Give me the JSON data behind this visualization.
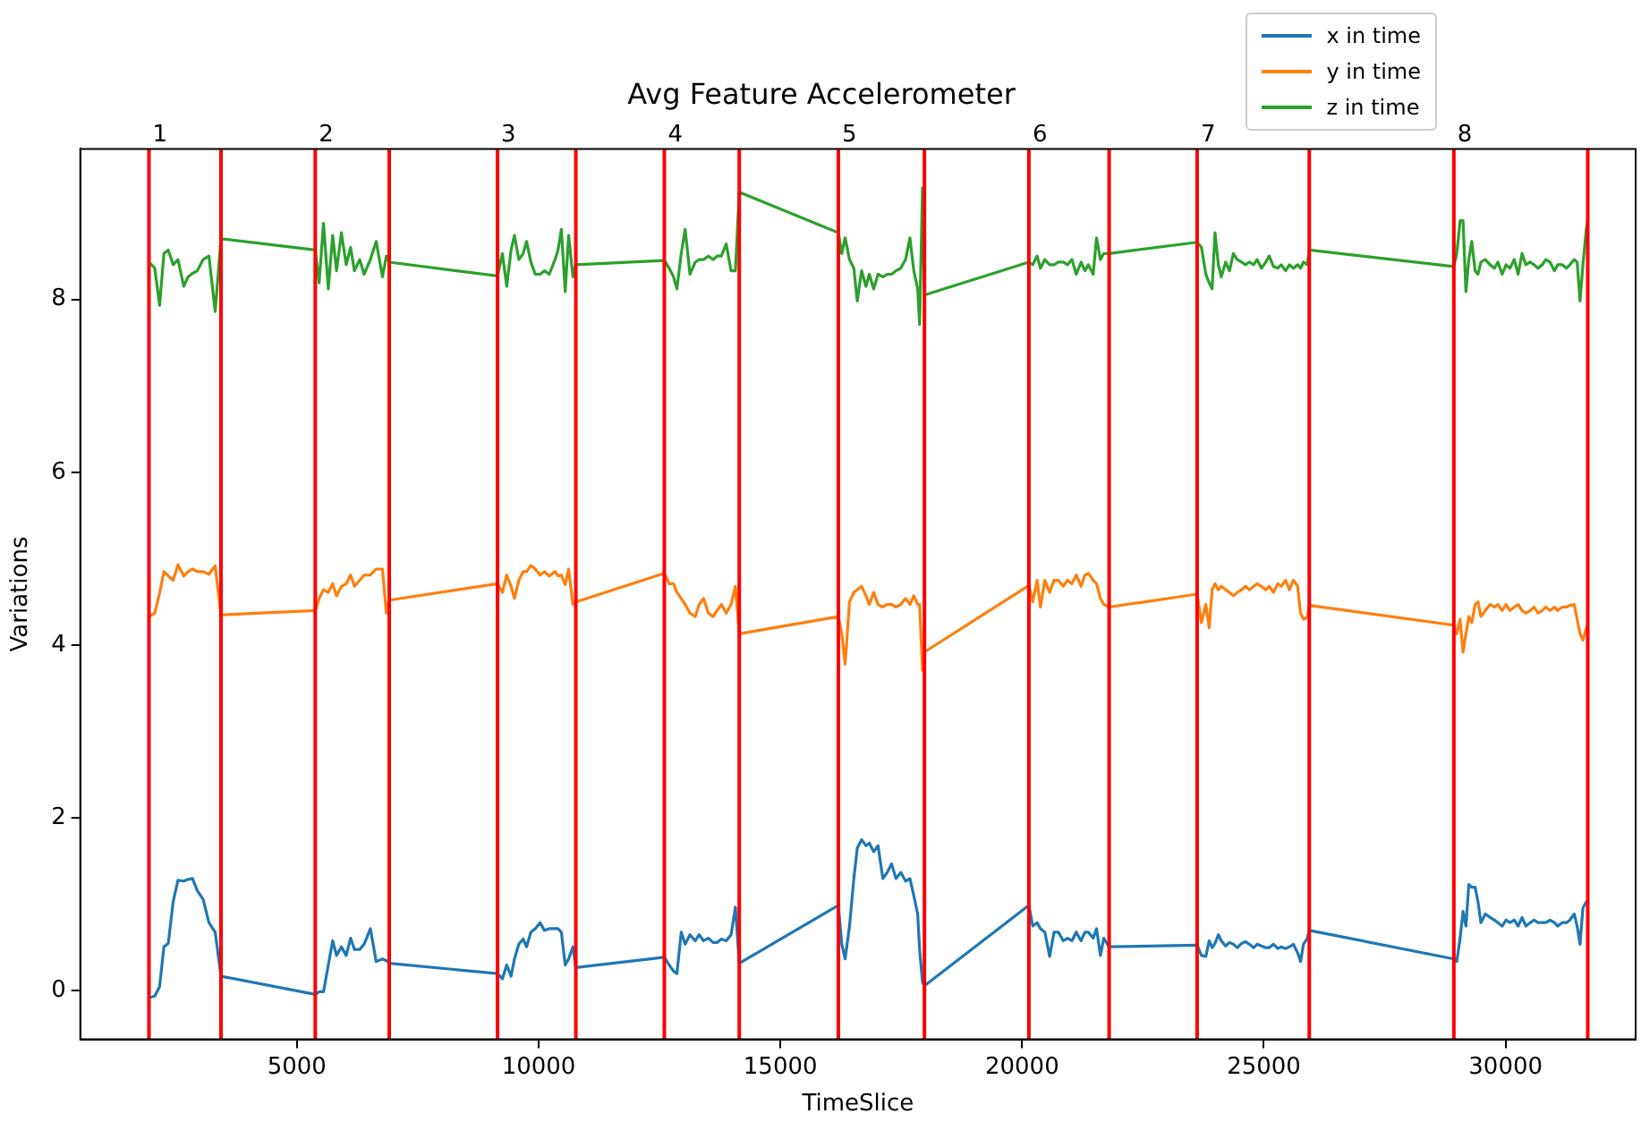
{
  "chart_data": {
    "type": "line",
    "title": "Avg Feature Accelerometer",
    "xlabel": "TimeSlice",
    "ylabel": "Variations",
    "xlim": [
      520,
      32690
    ],
    "xticks": [
      5000,
      10000,
      15000,
      20000,
      25000,
      30000
    ],
    "ylim": [
      -0.56,
      9.74
    ],
    "yticks": [
      0,
      2,
      4,
      6,
      8
    ],
    "grid": false,
    "legend": "top right",
    "marker": "none",
    "line_style": "solid",
    "x": [
      1940,
      2060,
      2160,
      2250,
      2340,
      2440,
      2540,
      2660,
      2750,
      2840,
      2940,
      3060,
      3180,
      3310,
      3430,
      5380,
      5460,
      5550,
      5650,
      5740,
      5820,
      5920,
      6020,
      6110,
      6190,
      6300,
      6390,
      6520,
      6640,
      6770,
      6850,
      6910,
      9150,
      9250,
      9340,
      9430,
      9500,
      9590,
      9680,
      9750,
      9840,
      9930,
      10030,
      10120,
      10220,
      10340,
      10400,
      10470,
      10550,
      10620,
      10710,
      10770,
      12600,
      12700,
      12790,
      12860,
      12950,
      13030,
      13130,
      13240,
      13320,
      13410,
      13510,
      13610,
      13690,
      13780,
      13880,
      13980,
      14070,
      14150,
      16200,
      16270,
      16340,
      16430,
      16520,
      16590,
      16680,
      16770,
      16840,
      16930,
      17020,
      17120,
      17210,
      17300,
      17390,
      17490,
      17590,
      17680,
      17760,
      17840,
      17880,
      17940,
      17980,
      20140,
      20220,
      20310,
      20380,
      20470,
      20570,
      20660,
      20750,
      20850,
      20940,
      21030,
      21120,
      21220,
      21300,
      21370,
      21470,
      21540,
      21620,
      21690,
      21800,
      23620,
      23710,
      23800,
      23870,
      23930,
      23990,
      24060,
      24120,
      24210,
      24290,
      24370,
      24450,
      24540,
      24620,
      24700,
      24790,
      24860,
      24950,
      25040,
      25110,
      25200,
      25290,
      25360,
      25450,
      25530,
      25610,
      25700,
      25760,
      25820,
      25900,
      25940,
      28930,
      28990,
      29060,
      29120,
      29180,
      29240,
      29300,
      29370,
      29430,
      29490,
      29580,
      29680,
      29770,
      29840,
      29930,
      30010,
      30090,
      30180,
      30260,
      30340,
      30420,
      30510,
      30590,
      30670,
      30760,
      30830,
      30920,
      31010,
      31080,
      31170,
      31260,
      31330,
      31420,
      31480,
      31540,
      31600,
      31670,
      31700
    ],
    "series": [
      {
        "name": "x in time",
        "color": "#1f77b4",
        "values": [
          -0.08,
          -0.06,
          0.05,
          0.51,
          0.55,
          1.03,
          1.28,
          1.27,
          1.29,
          1.3,
          1.16,
          1.06,
          0.79,
          0.68,
          0.17,
          -0.04,
          -0.01,
          -0.01,
          0.3,
          0.58,
          0.41,
          0.51,
          0.41,
          0.61,
          0.48,
          0.48,
          0.54,
          0.72,
          0.34,
          0.37,
          0.35,
          0.32,
          0.2,
          0.14,
          0.3,
          0.17,
          0.37,
          0.54,
          0.6,
          0.51,
          0.68,
          0.72,
          0.79,
          0.7,
          0.72,
          0.72,
          0.72,
          0.68,
          0.3,
          0.37,
          0.51,
          0.27,
          0.39,
          0.3,
          0.23,
          0.2,
          0.68,
          0.54,
          0.65,
          0.58,
          0.65,
          0.58,
          0.61,
          0.56,
          0.56,
          0.6,
          0.58,
          0.65,
          0.97,
          0.32,
          0.99,
          0.54,
          0.37,
          0.75,
          1.3,
          1.65,
          1.75,
          1.68,
          1.71,
          1.61,
          1.68,
          1.3,
          1.37,
          1.47,
          1.3,
          1.37,
          1.27,
          1.3,
          1.1,
          0.89,
          0.48,
          0.1,
          0.06,
          0.99,
          0.75,
          0.79,
          0.72,
          0.68,
          0.4,
          0.68,
          0.68,
          0.58,
          0.61,
          0.58,
          0.68,
          0.58,
          0.68,
          0.68,
          0.61,
          0.72,
          0.41,
          0.61,
          0.51,
          0.53,
          0.41,
          0.4,
          0.58,
          0.5,
          0.55,
          0.65,
          0.58,
          0.52,
          0.56,
          0.54,
          0.5,
          0.55,
          0.57,
          0.54,
          0.5,
          0.54,
          0.52,
          0.5,
          0.5,
          0.54,
          0.49,
          0.51,
          0.49,
          0.51,
          0.54,
          0.44,
          0.34,
          0.54,
          0.61,
          0.7,
          0.37,
          0.34,
          0.61,
          0.92,
          0.75,
          1.23,
          1.2,
          1.2,
          1.03,
          0.79,
          0.89,
          0.85,
          0.82,
          0.79,
          0.75,
          0.82,
          0.79,
          0.82,
          0.75,
          0.85,
          0.75,
          0.79,
          0.82,
          0.79,
          0.79,
          0.79,
          0.82,
          0.79,
          0.75,
          0.79,
          0.79,
          0.82,
          0.89,
          0.75,
          0.54,
          0.96,
          1.03,
          1.03
        ]
      },
      {
        "name": "y in time",
        "color": "#ff7f0e",
        "values": [
          4.33,
          4.37,
          4.6,
          4.85,
          4.8,
          4.75,
          4.93,
          4.8,
          4.85,
          4.88,
          4.85,
          4.85,
          4.82,
          4.92,
          4.35,
          4.4,
          4.54,
          4.64,
          4.61,
          4.71,
          4.57,
          4.68,
          4.71,
          4.81,
          4.68,
          4.75,
          4.81,
          4.81,
          4.88,
          4.88,
          4.37,
          4.52,
          4.71,
          4.61,
          4.81,
          4.68,
          4.54,
          4.75,
          4.85,
          4.85,
          4.92,
          4.88,
          4.81,
          4.85,
          4.8,
          4.85,
          4.8,
          4.81,
          4.7,
          4.88,
          4.47,
          4.5,
          4.83,
          4.71,
          4.71,
          4.61,
          4.54,
          4.47,
          4.37,
          4.33,
          4.47,
          4.54,
          4.37,
          4.33,
          4.4,
          4.47,
          4.37,
          4.47,
          4.68,
          4.13,
          4.33,
          4.13,
          3.78,
          4.5,
          4.61,
          4.64,
          4.68,
          4.57,
          4.47,
          4.61,
          4.47,
          4.44,
          4.47,
          4.47,
          4.44,
          4.47,
          4.54,
          4.47,
          4.57,
          4.47,
          4.47,
          3.71,
          3.92,
          4.69,
          4.5,
          4.75,
          4.44,
          4.75,
          4.61,
          4.75,
          4.75,
          4.68,
          4.75,
          4.71,
          4.81,
          4.68,
          4.81,
          4.83,
          4.75,
          4.71,
          4.54,
          4.47,
          4.44,
          4.59,
          4.26,
          4.47,
          4.2,
          4.64,
          4.71,
          4.64,
          4.68,
          4.64,
          4.61,
          4.57,
          4.61,
          4.64,
          4.68,
          4.64,
          4.68,
          4.71,
          4.68,
          4.64,
          4.68,
          4.61,
          4.71,
          4.68,
          4.75,
          4.64,
          4.75,
          4.68,
          4.37,
          4.3,
          4.32,
          4.46,
          4.23,
          4.13,
          4.3,
          3.92,
          4.13,
          4.33,
          4.26,
          4.47,
          4.5,
          4.33,
          4.4,
          4.47,
          4.44,
          4.47,
          4.4,
          4.47,
          4.4,
          4.44,
          4.47,
          4.4,
          4.37,
          4.4,
          4.44,
          4.37,
          4.4,
          4.44,
          4.4,
          4.44,
          4.4,
          4.44,
          4.44,
          4.46,
          4.47,
          4.3,
          4.13,
          4.06,
          4.19,
          4.23
        ]
      },
      {
        "name": "z in time",
        "color": "#2ca02c",
        "values": [
          8.43,
          8.36,
          7.93,
          8.53,
          8.57,
          8.4,
          8.46,
          8.15,
          8.26,
          8.3,
          8.33,
          8.46,
          8.5,
          7.86,
          8.7,
          8.57,
          8.19,
          8.88,
          8.12,
          8.74,
          8.33,
          8.77,
          8.4,
          8.6,
          8.33,
          8.46,
          8.29,
          8.46,
          8.67,
          8.26,
          8.5,
          8.43,
          8.27,
          8.53,
          8.15,
          8.57,
          8.74,
          8.46,
          8.53,
          8.67,
          8.43,
          8.29,
          8.29,
          8.33,
          8.29,
          8.46,
          8.57,
          8.81,
          8.09,
          8.74,
          8.26,
          8.4,
          8.45,
          8.36,
          8.26,
          8.12,
          8.53,
          8.81,
          8.29,
          8.43,
          8.46,
          8.46,
          8.5,
          8.46,
          8.5,
          8.5,
          8.64,
          8.33,
          8.33,
          9.24,
          8.77,
          8.53,
          8.71,
          8.46,
          8.36,
          7.98,
          8.33,
          8.15,
          8.29,
          8.12,
          8.29,
          8.26,
          8.29,
          8.29,
          8.33,
          8.36,
          8.46,
          8.71,
          8.33,
          8.12,
          7.71,
          9.29,
          8.05,
          8.43,
          8.4,
          8.5,
          8.36,
          8.46,
          8.4,
          8.4,
          8.43,
          8.43,
          8.4,
          8.46,
          8.29,
          8.43,
          8.33,
          8.4,
          8.29,
          8.71,
          8.46,
          8.53,
          8.53,
          8.66,
          8.6,
          8.29,
          8.19,
          8.12,
          8.77,
          8.4,
          8.26,
          8.43,
          8.33,
          8.53,
          8.46,
          8.43,
          8.4,
          8.43,
          8.4,
          8.46,
          8.36,
          8.43,
          8.5,
          8.38,
          8.36,
          8.4,
          8.33,
          8.4,
          8.36,
          8.4,
          8.36,
          8.43,
          8.4,
          8.57,
          8.38,
          8.53,
          8.91,
          8.91,
          8.09,
          8.46,
          8.67,
          8.33,
          8.29,
          8.43,
          8.46,
          8.4,
          8.36,
          8.43,
          8.29,
          8.4,
          8.36,
          8.46,
          8.29,
          8.53,
          8.4,
          8.43,
          8.4,
          8.36,
          8.4,
          8.46,
          8.43,
          8.33,
          8.4,
          8.4,
          8.36,
          8.4,
          8.46,
          8.43,
          7.98,
          8.4,
          8.81,
          8.91
        ]
      }
    ],
    "annotations": [
      "1",
      "2",
      "3",
      "4",
      "5",
      "6",
      "7",
      "8"
    ],
    "ref_lines": [
      {
        "axis": "x",
        "value": 1940,
        "color": "#ff0000"
      },
      {
        "axis": "x",
        "value": 3430,
        "color": "#ff0000"
      },
      {
        "axis": "x",
        "value": 5380,
        "color": "#ff0000"
      },
      {
        "axis": "x",
        "value": 6910,
        "color": "#ff0000"
      },
      {
        "axis": "x",
        "value": 9150,
        "color": "#ff0000"
      },
      {
        "axis": "x",
        "value": 10770,
        "color": "#ff0000"
      },
      {
        "axis": "x",
        "value": 12600,
        "color": "#ff0000"
      },
      {
        "axis": "x",
        "value": 14150,
        "color": "#ff0000"
      },
      {
        "axis": "x",
        "value": 16200,
        "color": "#ff0000"
      },
      {
        "axis": "x",
        "value": 17980,
        "color": "#ff0000"
      },
      {
        "axis": "x",
        "value": 20140,
        "color": "#ff0000"
      },
      {
        "axis": "x",
        "value": 21800,
        "color": "#ff0000"
      },
      {
        "axis": "x",
        "value": 23620,
        "color": "#ff0000"
      },
      {
        "axis": "x",
        "value": 25940,
        "color": "#ff0000"
      },
      {
        "axis": "x",
        "value": 28930,
        "color": "#ff0000"
      },
      {
        "axis": "x",
        "value": 31700,
        "color": "#ff0000"
      }
    ]
  }
}
